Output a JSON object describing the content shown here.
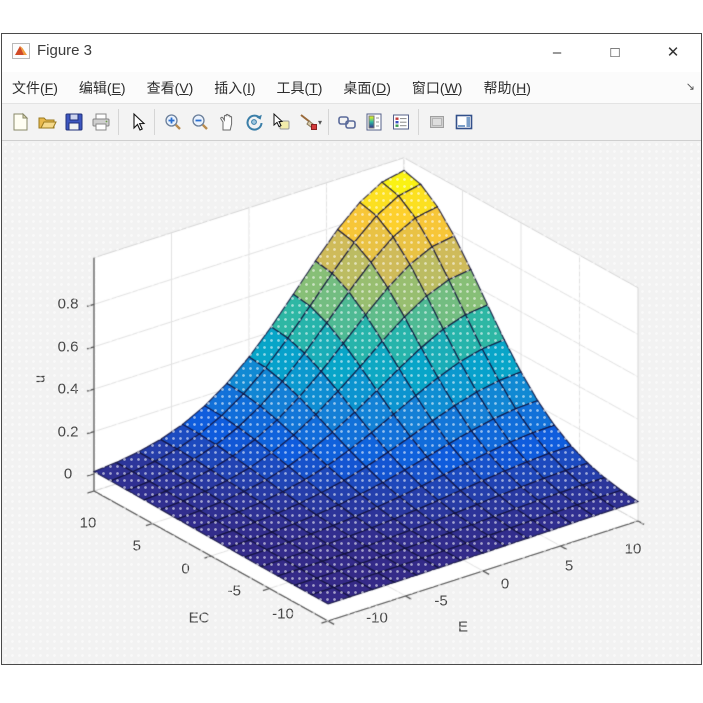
{
  "window": {
    "title": "Figure 3",
    "controls": {
      "minimize": "–",
      "maximize": "□",
      "close": "✕"
    }
  },
  "menu": {
    "items": [
      {
        "label": "文件",
        "mnemonic": "F"
      },
      {
        "label": "编辑",
        "mnemonic": "E"
      },
      {
        "label": "查看",
        "mnemonic": "V"
      },
      {
        "label": "插入",
        "mnemonic": "I"
      },
      {
        "label": "工具",
        "mnemonic": "T"
      },
      {
        "label": "桌面",
        "mnemonic": "D"
      },
      {
        "label": "窗口",
        "mnemonic": "W"
      },
      {
        "label": "帮助",
        "mnemonic": "H"
      }
    ],
    "dock_arrow": "↘"
  },
  "toolbar": {
    "groups": [
      [
        "new-figure",
        "open-file",
        "save-figure",
        "print-figure"
      ],
      [
        "edit-plot-pointer"
      ],
      [
        "zoom-in",
        "zoom-out",
        "pan",
        "rotate-3d",
        "data-cursor",
        "brush-data"
      ],
      [
        "link-plots",
        "insert-colorbar",
        "insert-legend"
      ],
      [
        "hide-plot-tools",
        "show-plot-tools"
      ]
    ]
  },
  "chart_data": {
    "type": "surface",
    "xlabel": "E",
    "ylabel": "EC",
    "zlabel": "u",
    "x_range": [
      -10,
      10
    ],
    "y_range": [
      -10,
      10
    ],
    "z_range": [
      -0.08,
      1.02
    ],
    "x_tick_labels": [
      "-10",
      "-5",
      "0",
      "5",
      "10"
    ],
    "x_tick_values": [
      -10,
      -5,
      0,
      5,
      10
    ],
    "y_tick_labels": [
      "10",
      "5",
      "0",
      "-5",
      "-10"
    ],
    "y_tick_values": [
      10,
      5,
      0,
      -5,
      -10
    ],
    "z_tick_labels": [
      "0",
      "0.2",
      "0.4",
      "0.6",
      "0.8"
    ],
    "z_tick_values": [
      0,
      0.2,
      0.4,
      0.6,
      0.8
    ],
    "grid_points": 15,
    "surface_formula": "u = 0.96*exp(-((E-10)^2+(EC-10)^2)/90)",
    "surface_params": {
      "amplitude": 0.96,
      "center_E": 10,
      "center_EC": 10,
      "falloff": 90
    },
    "z_min": 0,
    "z_peak": 0.96,
    "grid_on": true,
    "colormap": "parula",
    "colormap_stops": [
      "#352a87",
      "#0f5cdd",
      "#1481d6",
      "#06a4ca",
      "#2eb7a4",
      "#87bf77",
      "#d1bb59",
      "#fec832",
      "#f9fb0e"
    ],
    "mesh_edge_color": "#14143c",
    "wall_color": "#ffffff",
    "grid_line_color": "#e2e2e2",
    "axis_line_color": "#555555"
  }
}
